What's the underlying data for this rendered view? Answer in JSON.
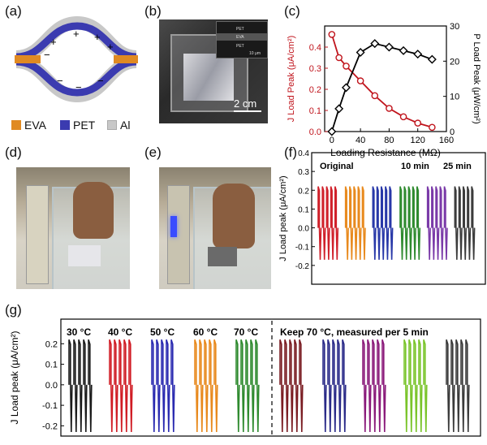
{
  "panels": {
    "a": {
      "label": "(a)",
      "legend": [
        "EVA",
        "PET",
        "Al"
      ],
      "colors": {
        "eva": "#e08a22",
        "pet": "#3b3bb0",
        "al": "#c8c8c8"
      },
      "charges_plus": [
        "+",
        "+",
        "+",
        "+"
      ],
      "charges_minus": [
        "−",
        "−",
        "−",
        "−"
      ]
    },
    "b": {
      "label": "(b)",
      "scale": "2 cm",
      "inset_labels": [
        "PET",
        "EVA",
        "PET"
      ],
      "inset_scale": "10 μm"
    },
    "c": {
      "label": "(c)"
    },
    "d": {
      "label": "(d)"
    },
    "e": {
      "label": "(e)"
    },
    "f": {
      "label": "(f)",
      "annotations": [
        "Original",
        "10 min",
        "25 min"
      ]
    },
    "g": {
      "label": "(g)",
      "annotations": [
        "30 °C",
        "40 °C",
        "50 °C",
        "60 °C",
        "70 °C",
        "Keep 70 °C, measured per 5 min"
      ]
    }
  },
  "chart_data": [
    {
      "panel": "c",
      "type": "line",
      "xlabel": "Loading Resistance (MΩ)",
      "ylabel": "J Load Peak (μA/cm²)",
      "y2label": "P Load Peak (μW/cm²)",
      "xlim": [
        -10,
        160
      ],
      "ylim": [
        0,
        0.5
      ],
      "y2lim": [
        0,
        30
      ],
      "xticks": [
        0,
        40,
        80,
        120,
        160
      ],
      "yticks": [
        0.0,
        0.1,
        0.2,
        0.3,
        0.4
      ],
      "y2ticks": [
        0,
        10,
        20,
        30
      ],
      "x": [
        0,
        10,
        20,
        40,
        60,
        80,
        100,
        120,
        140
      ],
      "series": [
        {
          "axis": "left",
          "color": "#c0141c",
          "marker": "circle",
          "values": [
            0.46,
            0.35,
            0.31,
            0.24,
            0.17,
            0.11,
            0.07,
            0.04,
            0.02
          ]
        },
        {
          "axis": "right",
          "color": "#000000",
          "marker": "diamond",
          "values": [
            0,
            6.5,
            12.5,
            22.5,
            25,
            24,
            23,
            22,
            20.5
          ]
        }
      ]
    },
    {
      "panel": "f",
      "type": "line",
      "ylabel": "J Load peak (μA/cm²)",
      "ylim": [
        -0.3,
        0.4
      ],
      "yticks": [
        "0.4",
        "0.3",
        "0.2",
        "0.1",
        "0.0",
        "-0.1",
        "-0.2"
      ],
      "peaks_per_group": 5,
      "peak_high": 0.22,
      "peak_low": -0.17,
      "groups": [
        "#d0202a",
        "#e88a1e",
        "#2838a8",
        "#2e8a2e",
        "#7a3aa8",
        "#3c3c3c"
      ]
    },
    {
      "panel": "g",
      "type": "line",
      "ylabel": "J Load peak (μA/cm²)",
      "ylim": [
        -0.25,
        0.32
      ],
      "yticks": [
        "0.2",
        "0.1",
        "0.0",
        "-0.1",
        "-0.2"
      ],
      "peaks_per_group": 5,
      "peak_high": 0.22,
      "peak_low": -0.23,
      "groups": [
        "#1a1a1a",
        "#d01c24",
        "#2a2ab0",
        "#e8891c",
        "#2e8a2e",
        "#7a1c22",
        "#2a2a88",
        "#8a1a7a",
        "#7ac42a",
        "#3a3a3a"
      ]
    }
  ]
}
